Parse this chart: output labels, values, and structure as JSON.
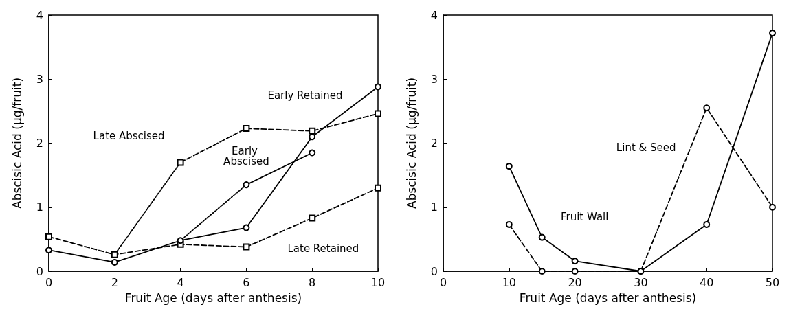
{
  "chart_data": [
    {
      "type": "line",
      "xlabel": "Fruit Age (days after anthesis)",
      "ylabel": "Abscisic Acid (µg/fruit)",
      "xlim": [
        0,
        10
      ],
      "xticks": [
        0,
        2,
        4,
        6,
        8,
        10
      ],
      "ylim": [
        0,
        4
      ],
      "yticks": [
        0,
        1,
        2,
        3,
        4
      ],
      "grid": false,
      "legend": false,
      "series": [
        {
          "name": "Early Retained",
          "color": "#000000",
          "line_style": "solid",
          "marker": "circle",
          "x": [
            0,
            2,
            4,
            6,
            8,
            10
          ],
          "values": [
            0.33,
            0.14,
            0.48,
            0.68,
            2.1,
            2.88
          ]
        },
        {
          "name": "Late Abscised",
          "color": "#000000",
          "line_style": "dashed",
          "marker": "square",
          "x": [
            4,
            6,
            8,
            10
          ],
          "values": [
            1.7,
            2.23,
            2.19,
            2.46
          ]
        },
        {
          "name": "Early Abscised",
          "color": "#000000",
          "line_style": "solid",
          "marker": "circle",
          "x": [
            6,
            8
          ],
          "values": [
            1.35,
            1.85
          ]
        },
        {
          "name": "Late Retained",
          "color": "#000000",
          "line_style": "dashed",
          "marker": "square",
          "x": [
            0,
            2,
            4,
            6,
            8,
            10
          ],
          "values": [
            0.54,
            0.26,
            0.42,
            0.38,
            0.83,
            1.3
          ]
        },
        {
          "color": "#000000",
          "line_style": "dotted",
          "marker": "none",
          "x": [
            2,
            4
          ],
          "values": [
            0.26,
            1.7
          ]
        },
        {
          "color": "#000000",
          "line_style": "dotted",
          "marker": "none",
          "x": [
            4,
            6
          ],
          "values": [
            0.48,
            1.35
          ]
        }
      ]
    },
    {
      "type": "line",
      "xlabel": "Fruit Age (days after anthesis)",
      "ylabel": "Abscisic Acid (µg/fruit)",
      "xlim": [
        0,
        50
      ],
      "xticks": [
        0,
        10,
        20,
        30,
        40,
        50
      ],
      "ylim": [
        0,
        4
      ],
      "yticks": [
        0,
        1,
        2,
        3,
        4
      ],
      "grid": false,
      "legend": false,
      "series": [
        {
          "name": "Fruit Wall",
          "color": "#000000",
          "line_style": "solid",
          "marker": "circle",
          "x": [
            10,
            15,
            20,
            30,
            40,
            50
          ],
          "values": [
            1.64,
            0.53,
            0.16,
            0,
            0.73,
            3.72
          ]
        },
        {
          "name": "Lint & Seed",
          "color": "#000000",
          "line_style": "dashed",
          "marker": "circle",
          "x": [
            10,
            15,
            20,
            30,
            40,
            50
          ],
          "values": [
            0.73,
            0,
            0,
            0,
            2.55,
            1.0
          ]
        }
      ]
    }
  ]
}
